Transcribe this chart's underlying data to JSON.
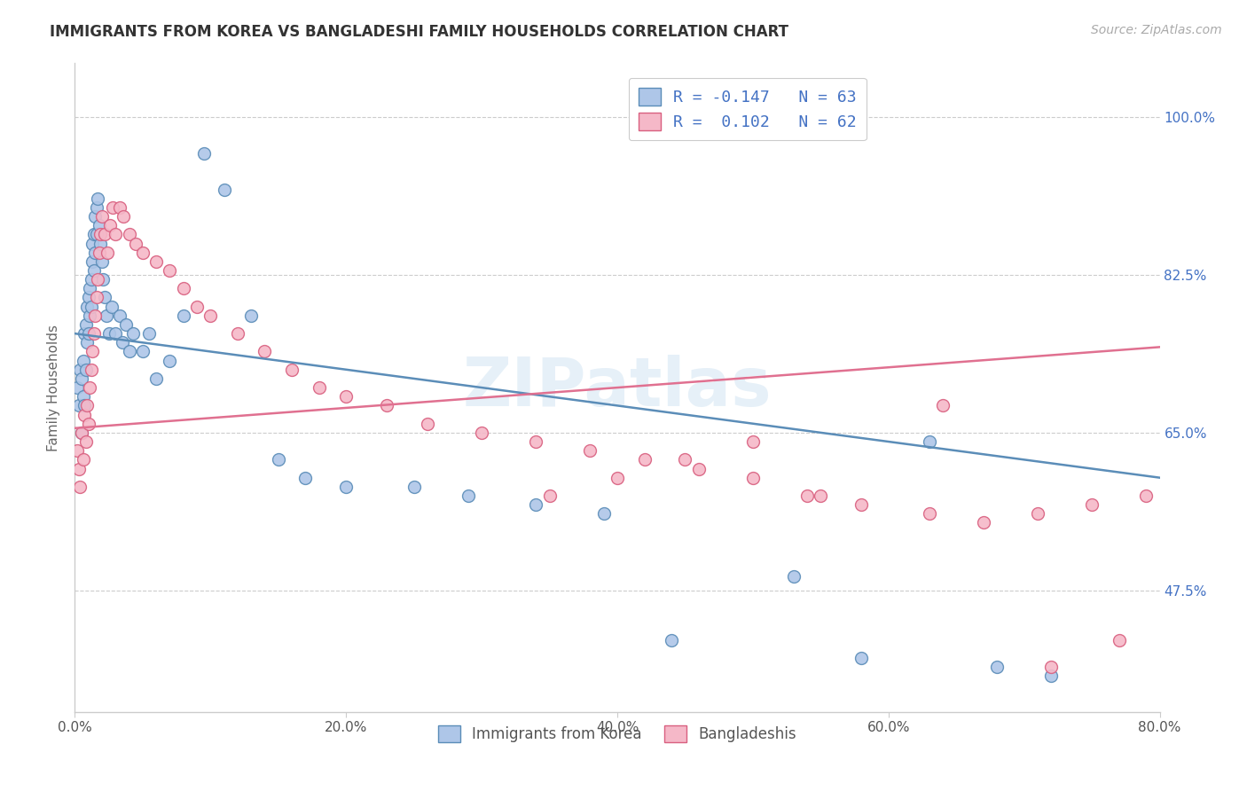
{
  "title": "IMMIGRANTS FROM KOREA VS BANGLADESHI FAMILY HOUSEHOLDS CORRELATION CHART",
  "source": "Source: ZipAtlas.com",
  "ylabel": "Family Households",
  "legend_label1": "Immigrants from Korea",
  "legend_label2": "Bangladeshis",
  "korea_color": "#aec6e8",
  "bang_color": "#f5b8c8",
  "korea_edge_color": "#5b8db8",
  "bang_edge_color": "#d96080",
  "korea_line_color": "#5b8db8",
  "bang_line_color": "#e07090",
  "watermark": "ZIPatlas",
  "xmin": 0.0,
  "xmax": 0.8,
  "ymin": 0.34,
  "ymax": 1.06,
  "ytick_vals": [
    1.0,
    0.825,
    0.65,
    0.475
  ],
  "ytick_labels": [
    "100.0%",
    "82.5%",
    "65.0%",
    "47.5%"
  ],
  "xtick_vals": [
    0.0,
    0.2,
    0.4,
    0.6,
    0.8
  ],
  "xtick_labels": [
    "0.0%",
    "20.0%",
    "40.0%",
    "60.0%",
    "80.0%"
  ],
  "korea_line_x": [
    0.0,
    0.8
  ],
  "korea_line_y": [
    0.76,
    0.6
  ],
  "bang_line_x": [
    0.0,
    0.8
  ],
  "bang_line_y": [
    0.655,
    0.745
  ],
  "korea_scatter_x": [
    0.002,
    0.003,
    0.004,
    0.005,
    0.005,
    0.006,
    0.006,
    0.007,
    0.007,
    0.008,
    0.008,
    0.009,
    0.009,
    0.01,
    0.01,
    0.011,
    0.011,
    0.012,
    0.012,
    0.013,
    0.013,
    0.014,
    0.014,
    0.015,
    0.015,
    0.016,
    0.016,
    0.017,
    0.018,
    0.019,
    0.02,
    0.021,
    0.022,
    0.023,
    0.025,
    0.027,
    0.03,
    0.033,
    0.035,
    0.038,
    0.04,
    0.043,
    0.05,
    0.055,
    0.06,
    0.07,
    0.08,
    0.095,
    0.11,
    0.13,
    0.15,
    0.17,
    0.2,
    0.25,
    0.29,
    0.34,
    0.39,
    0.44,
    0.53,
    0.58,
    0.63,
    0.68,
    0.72
  ],
  "korea_scatter_y": [
    0.7,
    0.68,
    0.72,
    0.65,
    0.71,
    0.69,
    0.73,
    0.76,
    0.68,
    0.77,
    0.72,
    0.79,
    0.75,
    0.8,
    0.76,
    0.81,
    0.78,
    0.82,
    0.79,
    0.84,
    0.86,
    0.87,
    0.83,
    0.89,
    0.85,
    0.9,
    0.87,
    0.91,
    0.88,
    0.86,
    0.84,
    0.82,
    0.8,
    0.78,
    0.76,
    0.79,
    0.76,
    0.78,
    0.75,
    0.77,
    0.74,
    0.76,
    0.74,
    0.76,
    0.71,
    0.73,
    0.78,
    0.96,
    0.92,
    0.78,
    0.62,
    0.6,
    0.59,
    0.59,
    0.58,
    0.57,
    0.56,
    0.42,
    0.49,
    0.4,
    0.64,
    0.39,
    0.38
  ],
  "bang_scatter_x": [
    0.002,
    0.003,
    0.004,
    0.005,
    0.006,
    0.007,
    0.008,
    0.009,
    0.01,
    0.011,
    0.012,
    0.013,
    0.014,
    0.015,
    0.016,
    0.017,
    0.018,
    0.019,
    0.02,
    0.022,
    0.024,
    0.026,
    0.028,
    0.03,
    0.033,
    0.036,
    0.04,
    0.045,
    0.05,
    0.06,
    0.07,
    0.08,
    0.09,
    0.1,
    0.12,
    0.14,
    0.16,
    0.18,
    0.2,
    0.23,
    0.26,
    0.3,
    0.34,
    0.38,
    0.42,
    0.46,
    0.5,
    0.54,
    0.58,
    0.63,
    0.67,
    0.71,
    0.75,
    0.79,
    0.35,
    0.4,
    0.45,
    0.5,
    0.55,
    0.64,
    0.72,
    0.77
  ],
  "bang_scatter_y": [
    0.63,
    0.61,
    0.59,
    0.65,
    0.62,
    0.67,
    0.64,
    0.68,
    0.66,
    0.7,
    0.72,
    0.74,
    0.76,
    0.78,
    0.8,
    0.82,
    0.85,
    0.87,
    0.89,
    0.87,
    0.85,
    0.88,
    0.9,
    0.87,
    0.9,
    0.89,
    0.87,
    0.86,
    0.85,
    0.84,
    0.83,
    0.81,
    0.79,
    0.78,
    0.76,
    0.74,
    0.72,
    0.7,
    0.69,
    0.68,
    0.66,
    0.65,
    0.64,
    0.63,
    0.62,
    0.61,
    0.6,
    0.58,
    0.57,
    0.56,
    0.55,
    0.56,
    0.57,
    0.58,
    0.58,
    0.6,
    0.62,
    0.64,
    0.58,
    0.68,
    0.39,
    0.42
  ]
}
